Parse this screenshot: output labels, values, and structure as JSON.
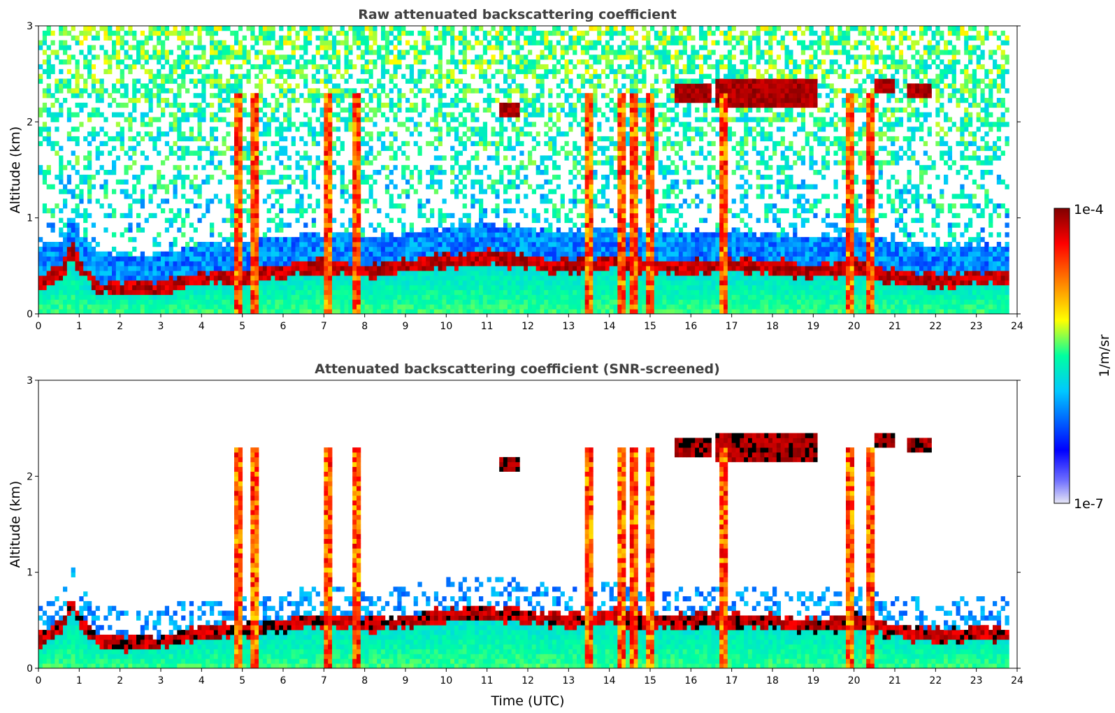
{
  "chart_data": [
    {
      "type": "heatmap",
      "title": "Raw attenuated backscattering coefficient",
      "xlabel": "",
      "ylabel": "Altitude (km)",
      "xlim": [
        0,
        24
      ],
      "ylim": [
        0,
        3
      ],
      "xticks": [
        "0",
        "1",
        "2",
        "3",
        "4",
        "5",
        "6",
        "7",
        "8",
        "9",
        "10",
        "11",
        "12",
        "13",
        "14",
        "15",
        "16",
        "17",
        "18",
        "19",
        "20",
        "21",
        "22",
        "23",
        "24"
      ],
      "yticks": [
        "0",
        "1",
        "2",
        "3"
      ],
      "screened": false
    },
    {
      "type": "heatmap",
      "title": "Attenuated backscattering coefficient (SNR-screened)",
      "xlabel": "Time (UTC)",
      "ylabel": "Altitude (km)",
      "xlim": [
        0,
        24
      ],
      "ylim": [
        0,
        3
      ],
      "xticks": [
        "0",
        "1",
        "2",
        "3",
        "4",
        "5",
        "6",
        "7",
        "8",
        "9",
        "10",
        "11",
        "12",
        "13",
        "14",
        "15",
        "16",
        "17",
        "18",
        "19",
        "20",
        "21",
        "22",
        "23",
        "24"
      ],
      "yticks": [
        "0",
        "1",
        "2",
        "3"
      ],
      "screened": true
    }
  ],
  "colorbar": {
    "label": "1/m/sr",
    "max_label": "1e-4",
    "min_label": "1e-7",
    "scale": "log",
    "range": [
      1e-07,
      0.0001
    ],
    "colormap": [
      "#e6e6f5",
      "#0000ff",
      "#00c8ff",
      "#00ffa0",
      "#ffff00",
      "#ff6400",
      "#ff0000",
      "#800000"
    ]
  },
  "features": {
    "boundary_layer_top_km": [
      [
        0.0,
        0.3
      ],
      [
        0.6,
        0.45
      ],
      [
        0.8,
        0.7
      ],
      [
        1.0,
        0.5
      ],
      [
        1.5,
        0.28
      ],
      [
        3.0,
        0.28
      ],
      [
        4.0,
        0.38
      ],
      [
        5.0,
        0.4
      ],
      [
        6.0,
        0.45
      ],
      [
        6.5,
        0.5
      ],
      [
        7.5,
        0.5
      ],
      [
        8.0,
        0.45
      ],
      [
        9.0,
        0.5
      ],
      [
        10.0,
        0.55
      ],
      [
        11.0,
        0.6
      ],
      [
        12.0,
        0.55
      ],
      [
        13.0,
        0.5
      ],
      [
        14.0,
        0.55
      ],
      [
        15.0,
        0.5
      ],
      [
        16.0,
        0.5
      ],
      [
        17.0,
        0.5
      ],
      [
        18.0,
        0.5
      ],
      [
        19.0,
        0.45
      ],
      [
        20.0,
        0.5
      ],
      [
        21.0,
        0.4
      ],
      [
        22.0,
        0.35
      ],
      [
        23.0,
        0.38
      ],
      [
        23.8,
        0.38
      ]
    ],
    "elevated_cloud_layers_km": [
      {
        "start_h": 15.6,
        "end_h": 16.5,
        "base_km": 2.2,
        "top_km": 2.4
      },
      {
        "start_h": 16.6,
        "end_h": 19.1,
        "base_km": 2.15,
        "top_km": 2.45
      },
      {
        "start_h": 20.5,
        "end_h": 21.0,
        "base_km": 2.3,
        "top_km": 2.45
      },
      {
        "start_h": 21.3,
        "end_h": 21.9,
        "base_km": 2.25,
        "top_km": 2.4
      },
      {
        "start_h": 11.3,
        "end_h": 11.8,
        "base_km": 2.05,
        "top_km": 2.2
      }
    ],
    "precipitation_columns_h": [
      4.9,
      5.3,
      7.1,
      7.8,
      13.5,
      14.3,
      14.6,
      15.0,
      16.8,
      19.9,
      20.4
    ]
  }
}
